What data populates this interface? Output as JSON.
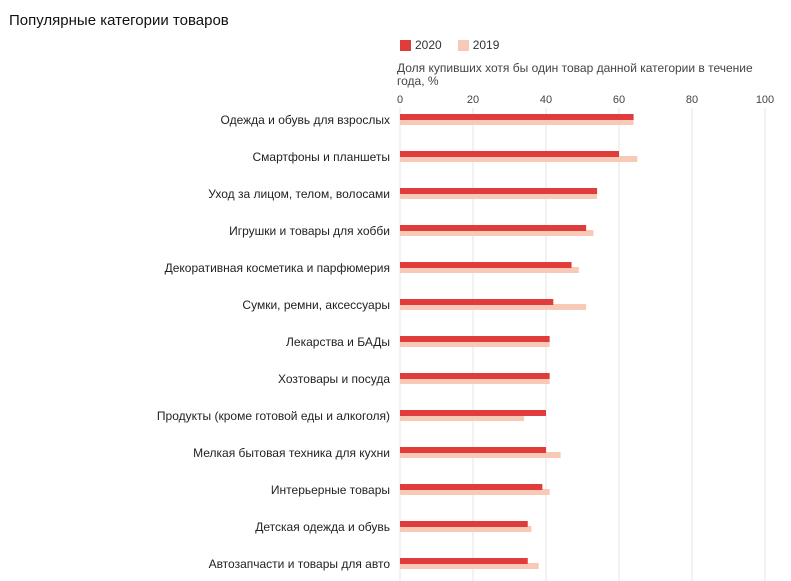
{
  "title": "Популярные категории товаров",
  "legend": {
    "items": [
      {
        "label": "2020",
        "color": "#e03c3c"
      },
      {
        "label": "2019",
        "color": "#f9c9b8"
      }
    ]
  },
  "chart_data": {
    "type": "bar",
    "orientation": "horizontal",
    "title": "Популярные категории товаров",
    "xlabel": "Доля купивших хотя бы один товар данной категории в течение года, %",
    "xlim": [
      0,
      100
    ],
    "xticks": [
      0,
      20,
      40,
      60,
      80,
      100
    ],
    "grid": true,
    "legend_position": "top-left",
    "categories": [
      "Одежда и обувь для взрослых",
      "Смартфоны и планшеты",
      "Уход за лицом, телом, волосами",
      "Игрушки и товары для хобби",
      "Декоративная косметика и парфюмерия",
      "Сумки, ремни, аксессуары",
      "Лекарства и БАДы",
      "Хозтовары и посуда",
      "Продукты (кроме готовой еды и алкоголя)",
      "Мелкая бытовая техника для кухни",
      "Интерьерные товары",
      "Детская одежда и обувь",
      "Автозапчасти и товары для авто"
    ],
    "series": [
      {
        "name": "2020",
        "color": "#e03c3c",
        "values": [
          64,
          60,
          54,
          51,
          47,
          42,
          41,
          41,
          40,
          40,
          39,
          35,
          35
        ]
      },
      {
        "name": "2019",
        "color": "#f9c9b8",
        "values": [
          64,
          65,
          54,
          53,
          49,
          51,
          41,
          41,
          34,
          44,
          41,
          36,
          38
        ]
      }
    ]
  }
}
